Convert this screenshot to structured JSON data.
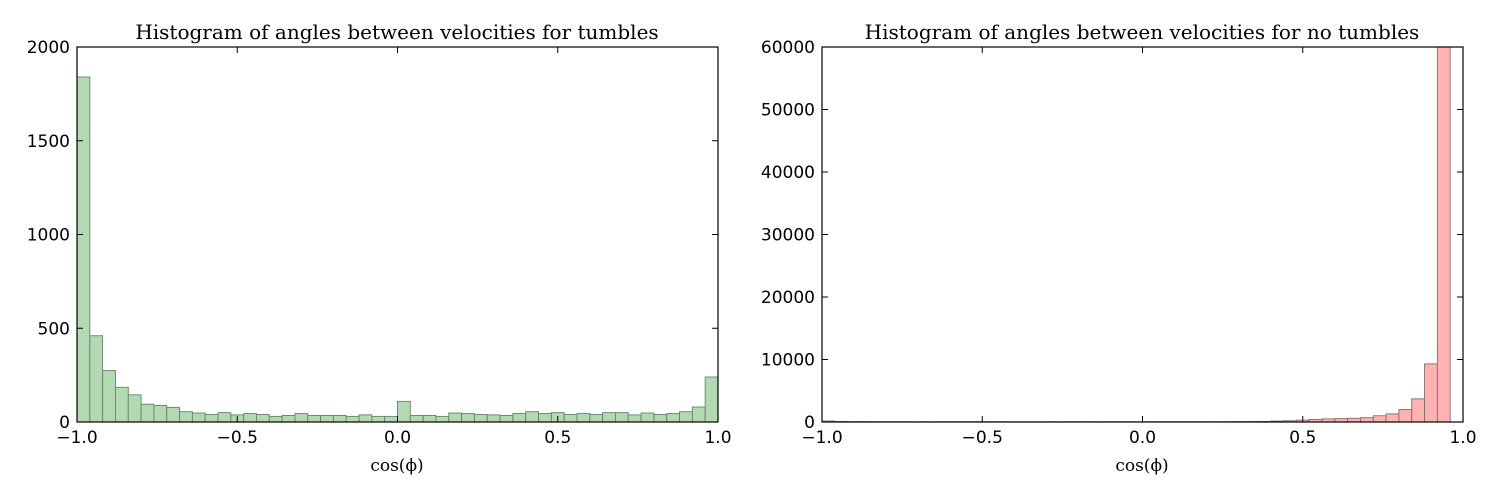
{
  "chart_data": [
    {
      "type": "bar",
      "title": "Histogram of angles between velocities for tumbles",
      "xlabel": "cos(ϕ)",
      "ylabel": "",
      "xlim": [
        -1.0,
        1.0
      ],
      "ylim": [
        0,
        2000
      ],
      "xticks": [
        "−1.0",
        "−0.5",
        "0.0",
        "0.5",
        "1.0"
      ],
      "xtick_values": [
        -1.0,
        -0.5,
        0.0,
        0.5,
        1.0
      ],
      "yticks": [
        "0",
        "500",
        "1000",
        "1500",
        "2000"
      ],
      "ytick_values": [
        0,
        500,
        1000,
        1500,
        2000
      ],
      "bin_edges_range": [
        -1.0,
        1.0
      ],
      "bin_count": 50,
      "values": [
        1840,
        460,
        275,
        185,
        145,
        95,
        88,
        78,
        55,
        48,
        40,
        50,
        38,
        45,
        40,
        30,
        35,
        45,
        35,
        35,
        35,
        30,
        38,
        30,
        30,
        110,
        35,
        35,
        30,
        48,
        45,
        40,
        38,
        35,
        45,
        55,
        45,
        50,
        40,
        45,
        40,
        50,
        50,
        38,
        48,
        40,
        45,
        55,
        80,
        240
      ],
      "bar_color": "#b2d9b2",
      "edge_color": "#6b806b",
      "grid": false,
      "legend": false
    },
    {
      "type": "bar",
      "title": "Histogram of angles between velocities for no tumbles",
      "xlabel": "cos(ϕ)",
      "ylabel": "",
      "xlim": [
        -1.0,
        1.0
      ],
      "ylim": [
        0,
        60000
      ],
      "xticks": [
        "−1.0",
        "−0.5",
        "0.0",
        "0.5",
        "1.0"
      ],
      "xtick_values": [
        -1.0,
        -0.5,
        0.0,
        0.5,
        1.0
      ],
      "yticks": [
        "0",
        "10000",
        "20000",
        "30000",
        "40000",
        "50000",
        "60000"
      ],
      "ytick_values": [
        0,
        10000,
        20000,
        30000,
        40000,
        50000,
        60000
      ],
      "bin_edges_range": [
        -1.0,
        1.0
      ],
      "bin_count": 50,
      "values": [
        160,
        80,
        60,
        55,
        45,
        40,
        38,
        35,
        35,
        35,
        40,
        45,
        50,
        40,
        35,
        30,
        30,
        35,
        35,
        40,
        45,
        35,
        45,
        40,
        40,
        45,
        45,
        40,
        40,
        45,
        45,
        50,
        60,
        70,
        90,
        150,
        200,
        300,
        400,
        500,
        550,
        600,
        700,
        1000,
        1300,
        2000,
        3700,
        9300,
        60000,
        0
      ],
      "bar_color": "#ffb2b2",
      "edge_color": "#8a6b6b",
      "grid": false,
      "legend": false
    }
  ]
}
